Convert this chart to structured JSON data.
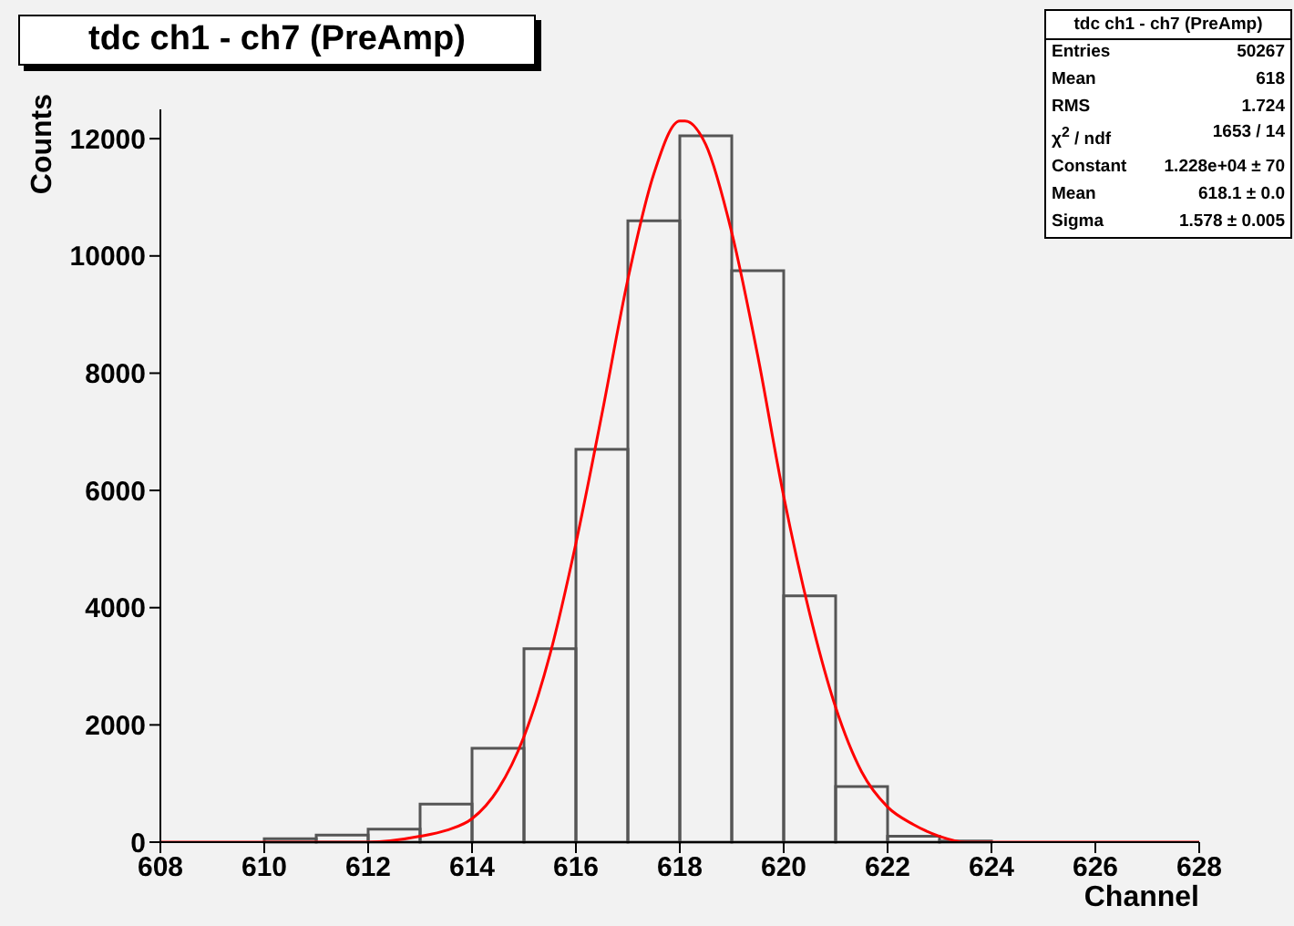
{
  "chart_data": {
    "type": "histogram",
    "title": "tdc ch1 - ch7 (PreAmp)",
    "xlabel": "Channel",
    "ylabel": "Counts",
    "bins": [
      608,
      609,
      610,
      611,
      612,
      613,
      614,
      615,
      616,
      617,
      618,
      619,
      620,
      621,
      622,
      623,
      624,
      625,
      626,
      627,
      628
    ],
    "values": [
      0,
      0,
      60,
      120,
      220,
      650,
      1600,
      3300,
      6700,
      10600,
      12050,
      9750,
      4200,
      950,
      100,
      20,
      0,
      0,
      0,
      0
    ],
    "color": "#555555",
    "series": [
      {
        "type": "line",
        "color": "#ff0000",
        "x": [
          608,
          610,
          612,
          613,
          613.5,
          614,
          614.5,
          615,
          615.5,
          616,
          616.5,
          617,
          617.5,
          618,
          618.1,
          618.5,
          619,
          619.5,
          620,
          620.5,
          621,
          621.5,
          622,
          622.5,
          623,
          623.5,
          624,
          625,
          628
        ],
        "values": [
          0,
          0,
          0,
          100,
          200,
          400,
          900,
          1800,
          3200,
          5100,
          7300,
          9600,
          11400,
          12300,
          12300,
          11900,
          10400,
          8300,
          5900,
          3900,
          2300,
          1200,
          600,
          300,
          100,
          0,
          0,
          0,
          0
        ]
      }
    ],
    "xlim": [
      608,
      628
    ],
    "xticks": [
      608,
      610,
      612,
      614,
      616,
      618,
      620,
      622,
      624,
      626,
      628
    ],
    "ylim": [
      0,
      12500
    ],
    "yticks": [
      0,
      2000,
      4000,
      6000,
      8000,
      10000,
      12000
    ],
    "grid": false,
    "annotations": [
      "tdc ch1 - ch7 (PreAmp)",
      "Entries",
      "50267",
      "Mean",
      "618",
      "RMS",
      "1.724",
      "χ$^{2}$ / ndf",
      "1653 / 14",
      "Constant",
      "1.228e+04 ± 70",
      "Mean",
      "618.1 ± 0.0",
      "Sigma",
      "1.578 ± 0.005"
    ]
  }
}
